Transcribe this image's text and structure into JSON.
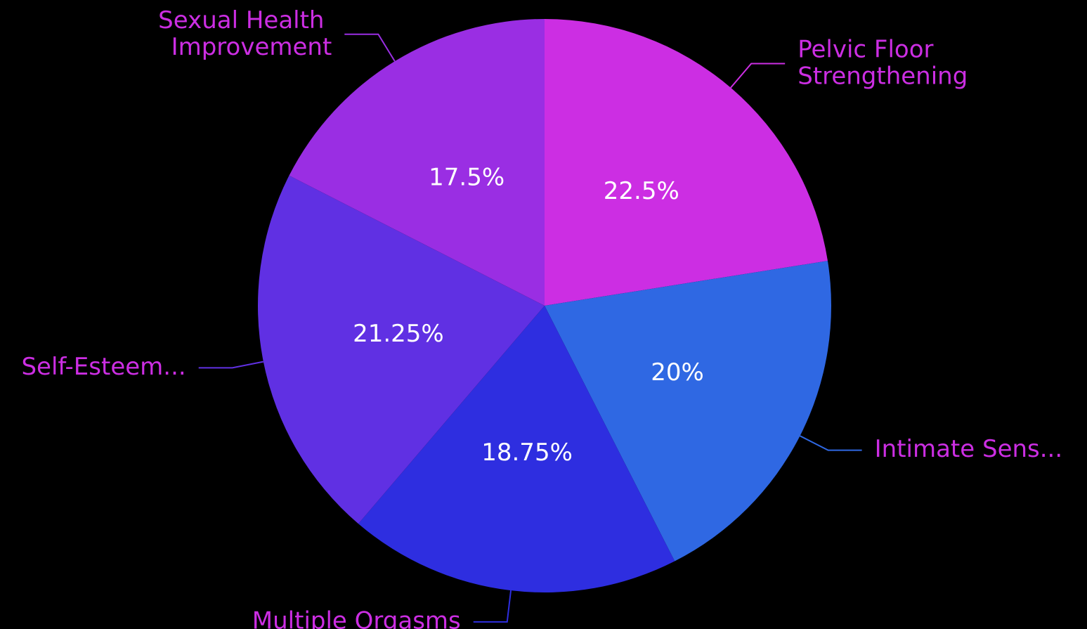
{
  "chart_data": {
    "type": "pie",
    "categories": [
      "Pelvic Floor Strengthening",
      "Intimate Sens...",
      "Multiple Orgasms",
      "Self-Esteem...",
      "Sexual Health Improvement"
    ],
    "values": [
      22.5,
      20,
      18.75,
      21.25,
      17.5
    ],
    "value_labels": [
      "22.5%",
      "20%",
      "18.75%",
      "21.25%",
      "17.5%"
    ],
    "colors": [
      "#cc2ee3",
      "#2f68e3",
      "#2e2ee0",
      "#6030e3",
      "#9a2ee3"
    ],
    "label_color": "#cc2ee3"
  }
}
